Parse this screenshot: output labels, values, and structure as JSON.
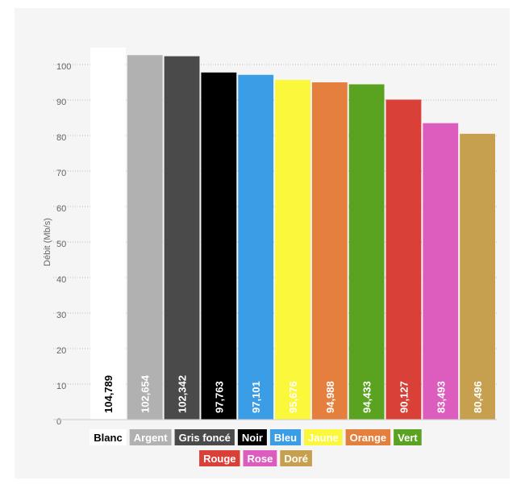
{
  "chart_data": {
    "type": "bar",
    "title": "",
    "xlabel": "",
    "ylabel": "Débit (Mb/s)",
    "ylim": [
      0,
      100
    ],
    "yticks": [
      "0",
      "10",
      "20",
      "30",
      "40",
      "50",
      "60",
      "70",
      "80",
      "90",
      "100"
    ],
    "grid": true,
    "legend_position": "bottom",
    "categories": [
      "Blanc",
      "Argent",
      "Gris foncé",
      "Noir",
      "Bleu",
      "Jaune",
      "Orange",
      "Vert",
      "Rouge",
      "Rose",
      "Doré"
    ],
    "values": [
      104.789,
      102.654,
      102.342,
      97.763,
      97.101,
      95.676,
      94.988,
      94.433,
      90.127,
      83.493,
      80.496
    ],
    "value_labels": [
      "104,789",
      "102,654",
      "102,342",
      "97,763",
      "97,101",
      "95,676",
      "94,988",
      "94,433",
      "90,127",
      "83,493",
      "80,496"
    ],
    "colors": [
      "#ffffff",
      "#b1b1b1",
      "#4a4a4a",
      "#000000",
      "#3a9de5",
      "#fbf73a",
      "#e57f3d",
      "#5aa320",
      "#d94138",
      "#dd5dbf",
      "#c7a04f"
    ],
    "legend_text_colors": [
      "#000000",
      "#ffffff",
      "#ffffff",
      "#ffffff",
      "#ffffff",
      "#ffffff",
      "#ffffff",
      "#ffffff",
      "#ffffff",
      "#ffffff",
      "#ffffff"
    ]
  }
}
